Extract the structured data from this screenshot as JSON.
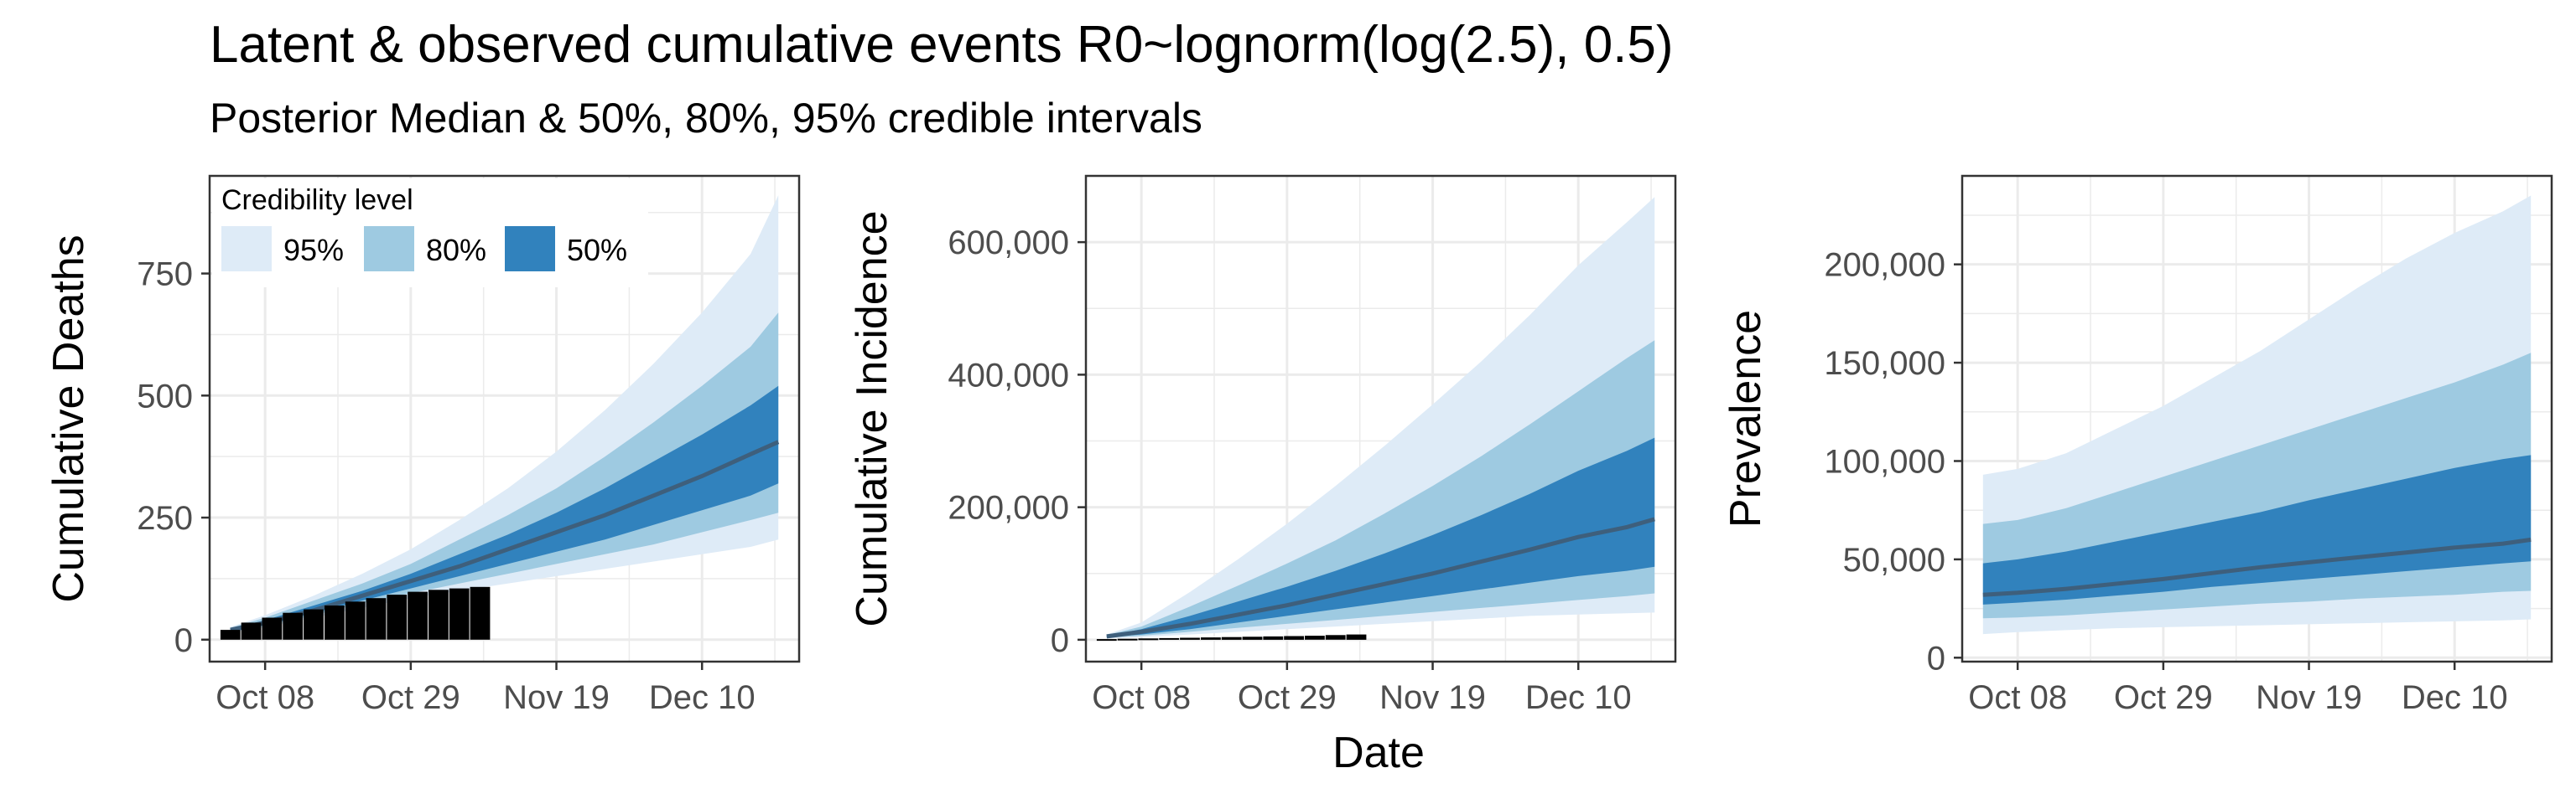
{
  "title": "Latent & observed cumulative events R0~lognorm(log(2.5), 0.5)",
  "subtitle": "Posterior Median & 50%, 80%, 95% credible intervals",
  "shared_xlabel": "Date",
  "colors": {
    "c95": "#deebf7",
    "c80": "#9ecae1",
    "c50": "#3182bd",
    "median": "#3e5f7c",
    "grid": "#ebebeb",
    "observed": "#000000"
  },
  "legend": {
    "title": "Credibility level",
    "items": [
      {
        "label": "95%",
        "color": "#deebf7"
      },
      {
        "label": "80%",
        "color": "#9ecae1"
      },
      {
        "label": "50%",
        "color": "#3182bd"
      }
    ]
  },
  "chart_data": [
    {
      "type": "area",
      "ylabel": "Cumulative Deaths",
      "xlim": [
        -8,
        77
      ],
      "ylim": [
        -45,
        950
      ],
      "x_ticks": [
        0,
        21,
        42,
        63
      ],
      "x_tick_labels": [
        "Oct 08",
        "Oct 29",
        "Nov 19",
        "Dec 10"
      ],
      "y_ticks": [
        0,
        250,
        500,
        750
      ],
      "y_tick_labels": [
        "0",
        "250",
        "500",
        "750"
      ],
      "x": [
        -5,
        0,
        7,
        14,
        21,
        28,
        35,
        42,
        49,
        56,
        63,
        70,
        74
      ],
      "q025": [
        15,
        25,
        45,
        65,
        85,
        100,
        115,
        130,
        145,
        160,
        175,
        190,
        205
      ],
      "q10": [
        16,
        28,
        50,
        75,
        95,
        115,
        135,
        155,
        175,
        195,
        220,
        245,
        260
      ],
      "q25": [
        18,
        30,
        55,
        80,
        105,
        130,
        155,
        180,
        205,
        235,
        265,
        295,
        320
      ],
      "median": [
        20,
        35,
        60,
        90,
        120,
        150,
        185,
        220,
        255,
        295,
        335,
        380,
        405
      ],
      "q75": [
        22,
        40,
        70,
        100,
        135,
        175,
        215,
        260,
        310,
        365,
        420,
        480,
        520
      ],
      "q90": [
        24,
        45,
        80,
        115,
        155,
        205,
        255,
        310,
        375,
        445,
        520,
        600,
        670
      ],
      "q975": [
        26,
        50,
        90,
        135,
        185,
        245,
        310,
        385,
        470,
        565,
        670,
        790,
        910
      ],
      "observed": {
        "x": [
          -5,
          -2,
          1,
          4,
          7,
          10,
          13,
          16,
          19,
          22,
          25,
          28,
          31
        ],
        "values": [
          20,
          35,
          45,
          55,
          62,
          70,
          78,
          85,
          92,
          98,
          102,
          105,
          108
        ]
      }
    },
    {
      "type": "area",
      "ylabel": "Cumulative Incidence",
      "xlim": [
        -8,
        77
      ],
      "ylim": [
        -33000,
        700000
      ],
      "x_ticks": [
        0,
        21,
        42,
        63
      ],
      "x_tick_labels": [
        "Oct 08",
        "Oct 29",
        "Nov 19",
        "Dec 10"
      ],
      "y_ticks": [
        0,
        200000,
        400000,
        600000
      ],
      "y_tick_labels": [
        "0",
        "200,000",
        "400,000",
        "600,000"
      ],
      "x": [
        -5,
        0,
        7,
        14,
        21,
        28,
        35,
        42,
        49,
        56,
        63,
        70,
        74
      ],
      "q025": [
        2000,
        4000,
        8000,
        12000,
        16000,
        20000,
        24000,
        28000,
        32000,
        36000,
        38000,
        40000,
        41000
      ],
      "q10": [
        3000,
        6000,
        12000,
        18000,
        24000,
        30000,
        36000,
        42000,
        48000,
        54000,
        60000,
        66000,
        70000
      ],
      "q25": [
        4000,
        8000,
        16000,
        26000,
        36000,
        46000,
        56000,
        66000,
        76000,
        86000,
        96000,
        104000,
        110000
      ],
      "median": [
        5000,
        12000,
        24000,
        38000,
        52000,
        68000,
        84000,
        100000,
        118000,
        136000,
        155000,
        170000,
        182000
      ],
      "q75": [
        6000,
        16000,
        36000,
        58000,
        80000,
        104000,
        130000,
        158000,
        188000,
        220000,
        255000,
        285000,
        305000
      ],
      "q90": [
        7000,
        20000,
        50000,
        82000,
        115000,
        150000,
        190000,
        232000,
        277000,
        325000,
        375000,
        425000,
        452000
      ],
      "q975": [
        8000,
        26000,
        72000,
        122000,
        175000,
        232000,
        292000,
        355000,
        420000,
        490000,
        565000,
        630000,
        668000
      ],
      "observed": {
        "x": [
          -5,
          -2,
          1,
          4,
          7,
          10,
          13,
          16,
          19,
          22,
          25,
          28,
          31
        ],
        "values": [
          1000,
          1500,
          2000,
          2500,
          3000,
          3500,
          4000,
          4500,
          5000,
          5500,
          6000,
          7000,
          8000
        ]
      }
    },
    {
      "type": "area",
      "ylabel": "Prevalence",
      "xlim": [
        -8,
        77
      ],
      "ylim": [
        -2000,
        245000
      ],
      "x_ticks": [
        0,
        21,
        42,
        63
      ],
      "x_tick_labels": [
        "Oct 08",
        "Oct 29",
        "Nov 19",
        "Dec 10"
      ],
      "y_ticks": [
        0,
        50000,
        100000,
        150000,
        200000
      ],
      "y_tick_labels": [
        "0",
        "50,000",
        "100,000",
        "150,000",
        "200,000"
      ],
      "x": [
        -5,
        0,
        7,
        14,
        21,
        28,
        35,
        42,
        49,
        56,
        63,
        70,
        74
      ],
      "q025": [
        12000,
        13000,
        14000,
        15000,
        15500,
        16000,
        16500,
        17000,
        17500,
        18000,
        18500,
        19000,
        19500
      ],
      "q10": [
        20000,
        20500,
        21500,
        23000,
        24500,
        26000,
        27500,
        28500,
        30000,
        31000,
        32000,
        33500,
        34000
      ],
      "q25": [
        27000,
        28000,
        29500,
        31500,
        33500,
        36000,
        38000,
        40000,
        42000,
        44000,
        46000,
        48000,
        49000
      ],
      "median": [
        32000,
        33000,
        35000,
        37500,
        40000,
        43000,
        46000,
        48500,
        51000,
        53500,
        56000,
        58000,
        60000
      ],
      "q75": [
        48000,
        50000,
        54000,
        59000,
        64000,
        69000,
        74000,
        80000,
        85500,
        91000,
        96500,
        101000,
        103000
      ],
      "q90": [
        68000,
        70000,
        76000,
        84000,
        92000,
        100000,
        108000,
        116000,
        124000,
        132000,
        140000,
        149000,
        155000
      ],
      "q975": [
        93000,
        96000,
        104000,
        116000,
        128000,
        142000,
        156000,
        172000,
        188000,
        203000,
        216000,
        227000,
        235000
      ]
    }
  ]
}
